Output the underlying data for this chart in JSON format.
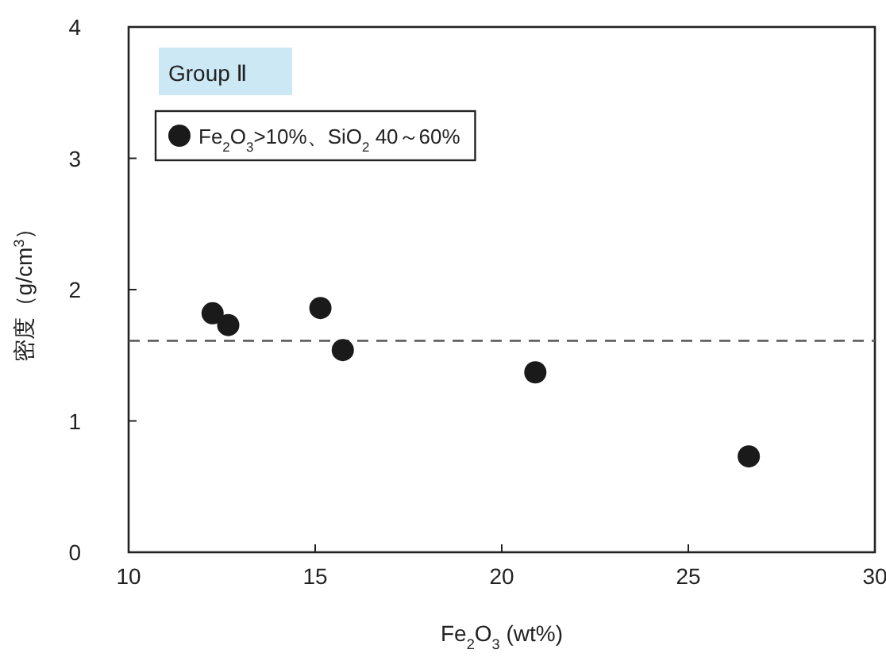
{
  "chart_data": {
    "type": "scatter",
    "title": "Group Ⅱ",
    "xlabel": "Fe$_{2}$O$_{3}$ (wt%)",
    "ylabel": "密度（g/cm$^{3}$）",
    "xlim": [
      10,
      30
    ],
    "xticks": [
      10,
      15,
      20,
      25,
      30
    ],
    "ylim": [
      0,
      4
    ],
    "yticks": [
      0,
      1,
      2,
      3,
      4
    ],
    "series": [
      {
        "name": "Fe$_{2}$O$_{3}$>10%、SiO$_{2}$ 40～60%",
        "color": "#1a1a1a",
        "x": [
          12.25,
          12.67,
          15.14,
          15.74,
          20.9,
          26.62
        ],
        "values": [
          1.82,
          1.73,
          1.86,
          1.54,
          1.37,
          0.73
        ]
      }
    ],
    "marker": "circle",
    "legend": "top left",
    "ref_lines": [
      {
        "axis": "y",
        "value": 1.61,
        "color": "#555555",
        "line_style": "dashed"
      }
    ]
  }
}
